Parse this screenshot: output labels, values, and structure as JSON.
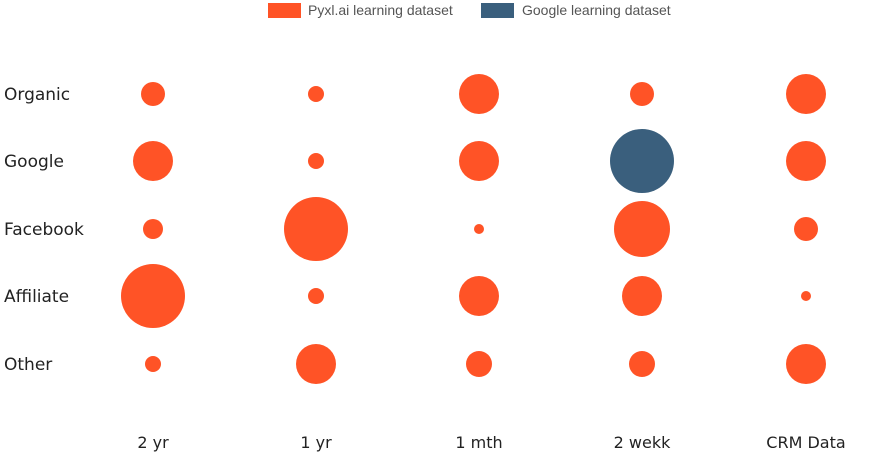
{
  "chart_data": {
    "type": "scatter",
    "subtype": "bubble-matrix",
    "title": "",
    "xlabel": "",
    "ylabel": "",
    "legend": {
      "placement": "top-center",
      "entries": [
        {
          "label": "Pyxl.ai learning dataset",
          "color": "#FF5326"
        },
        {
          "label": "Google learning dataset",
          "color": "#3A5F7D"
        }
      ]
    },
    "columns": [
      "2 yr",
      "1 yr",
      "1 mth",
      "2 wekk",
      "CRM Data"
    ],
    "rows": [
      "Organic",
      "Google",
      "Facebook",
      "Affiliate",
      "Other"
    ],
    "series_colors": {
      "pyxl": "#FF5326",
      "google": "#3A5F7D"
    },
    "values": [
      [
        {
          "v": 12,
          "s": "pyxl"
        },
        {
          "v": 8,
          "s": "pyxl"
        },
        {
          "v": 20,
          "s": "pyxl"
        },
        {
          "v": 12,
          "s": "pyxl"
        },
        {
          "v": 20,
          "s": "pyxl"
        }
      ],
      [
        {
          "v": 20,
          "s": "pyxl"
        },
        {
          "v": 8,
          "s": "pyxl"
        },
        {
          "v": 20,
          "s": "pyxl"
        },
        {
          "v": 32,
          "s": "google"
        },
        {
          "v": 20,
          "s": "pyxl"
        }
      ],
      [
        {
          "v": 10,
          "s": "pyxl"
        },
        {
          "v": 32,
          "s": "pyxl"
        },
        {
          "v": 5,
          "s": "pyxl"
        },
        {
          "v": 28,
          "s": "pyxl"
        },
        {
          "v": 12,
          "s": "pyxl"
        }
      ],
      [
        {
          "v": 32,
          "s": "pyxl"
        },
        {
          "v": 8,
          "s": "pyxl"
        },
        {
          "v": 20,
          "s": "pyxl"
        },
        {
          "v": 20,
          "s": "pyxl"
        },
        {
          "v": 5,
          "s": "pyxl"
        }
      ],
      [
        {
          "v": 8,
          "s": "pyxl"
        },
        {
          "v": 20,
          "s": "pyxl"
        },
        {
          "v": 13,
          "s": "pyxl"
        },
        {
          "v": 13,
          "s": "pyxl"
        },
        {
          "v": 20,
          "s": "pyxl"
        }
      ]
    ],
    "grid": false
  }
}
